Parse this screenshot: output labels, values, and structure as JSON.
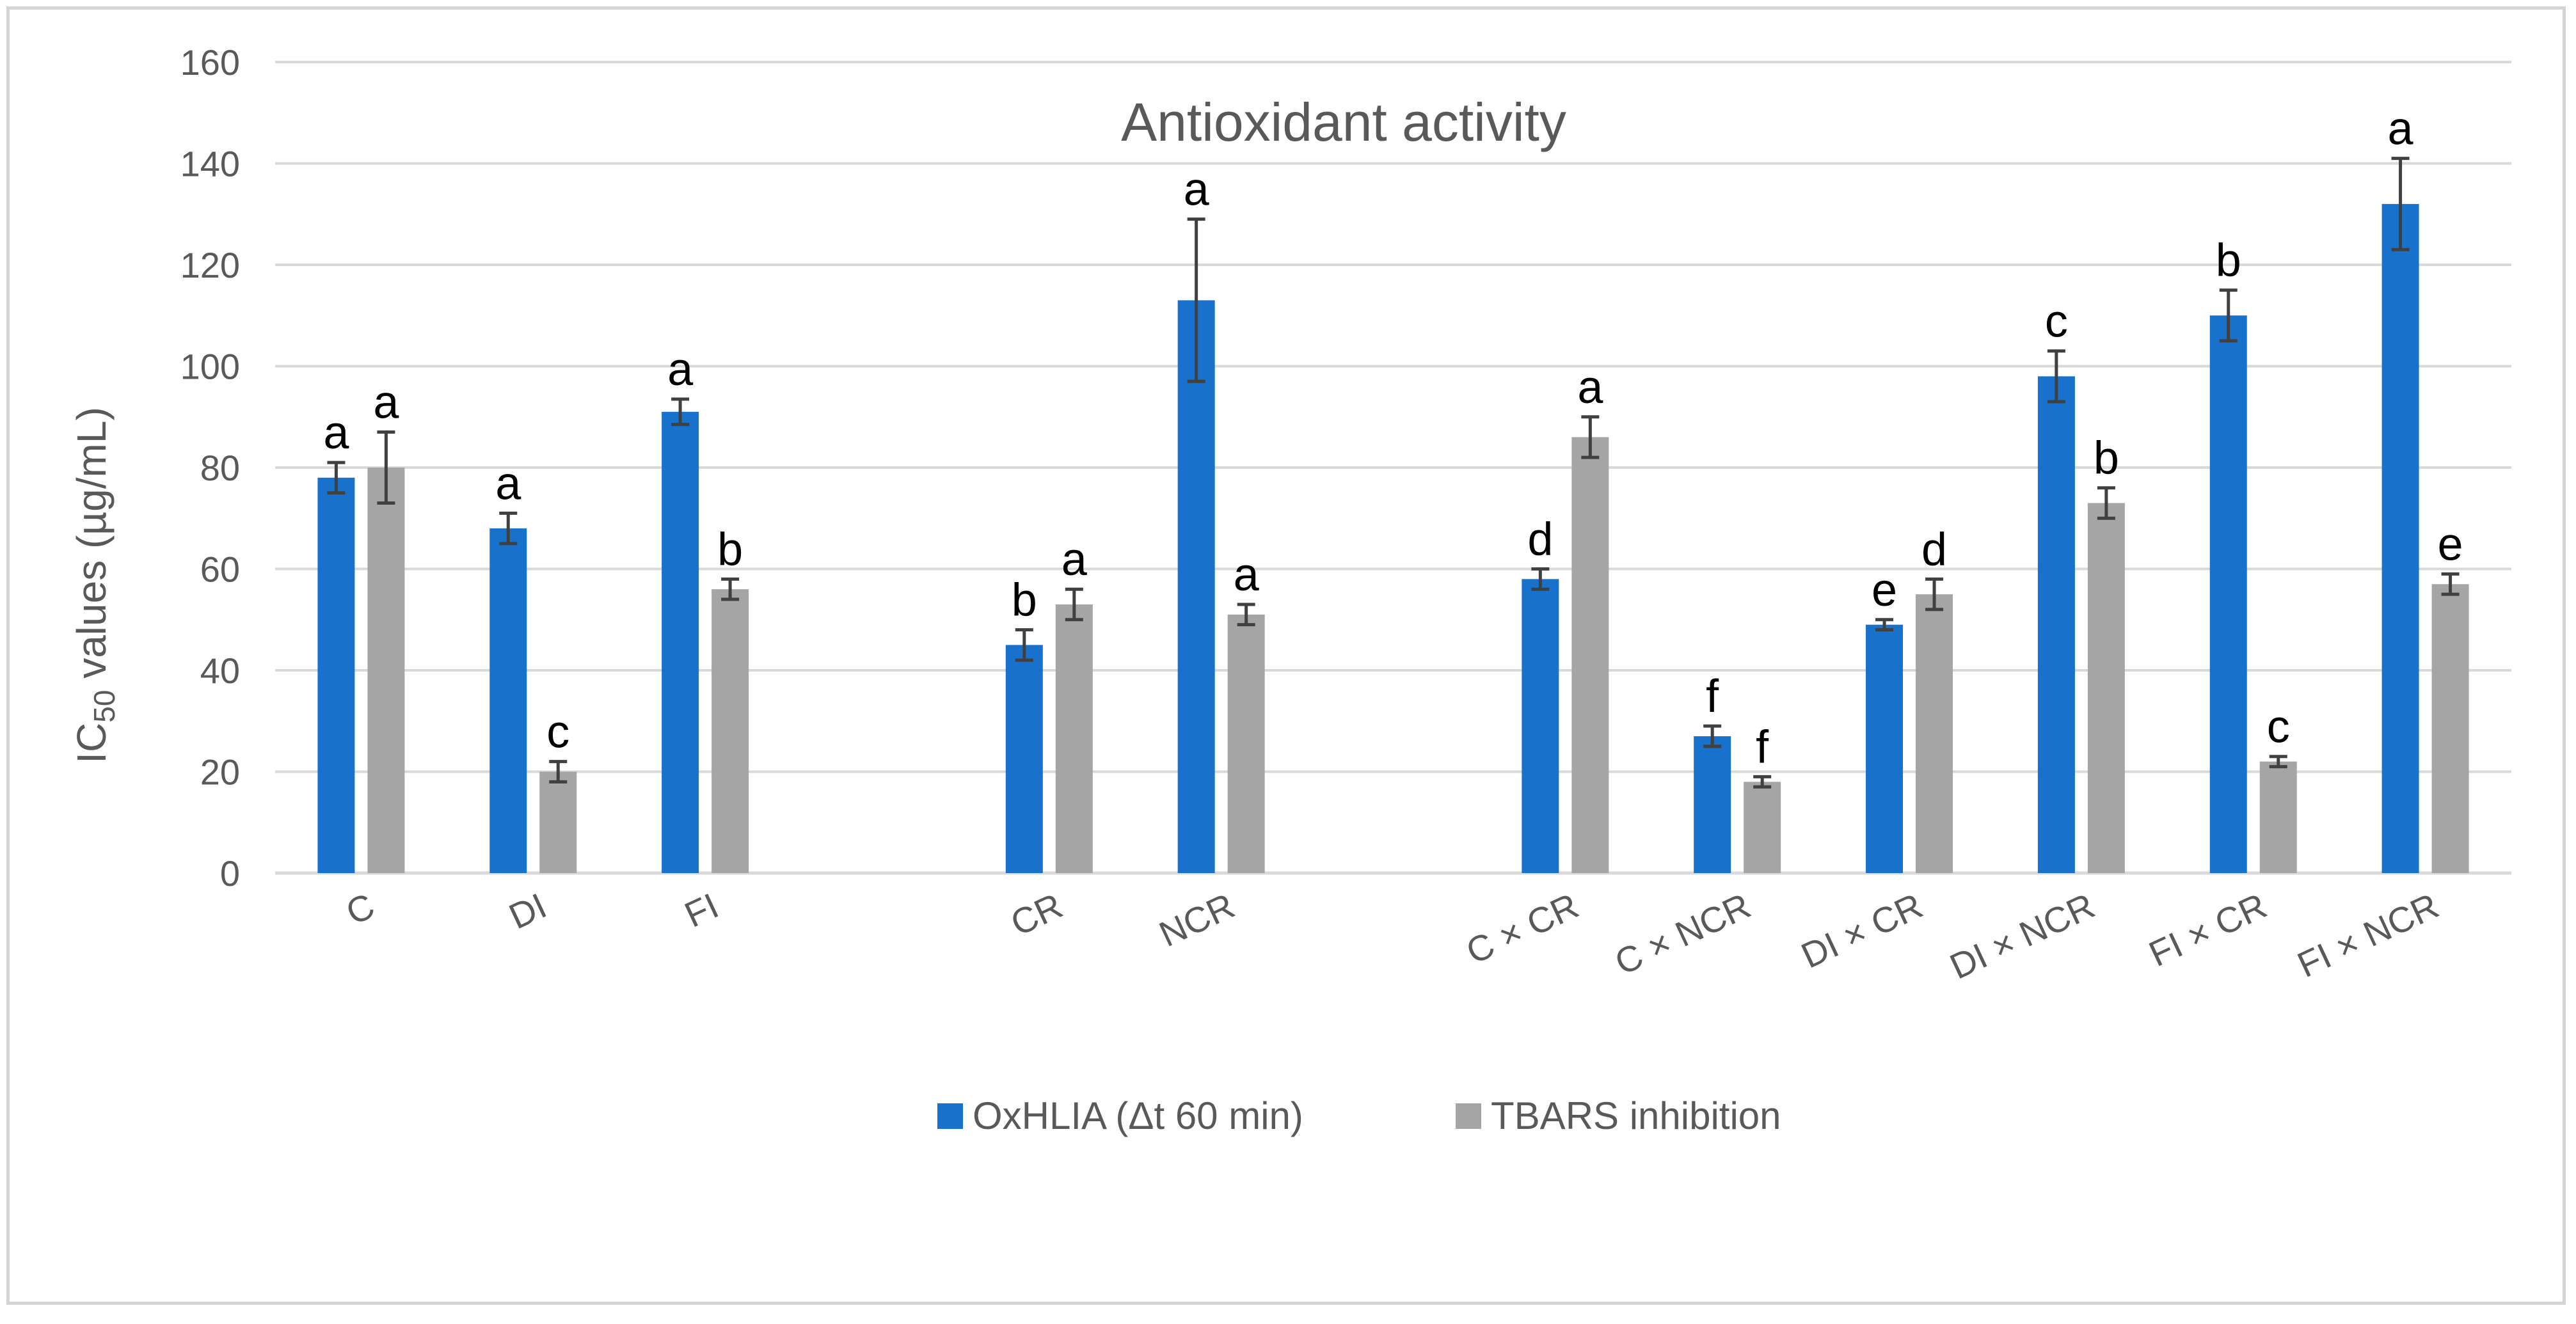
{
  "chart_data": {
    "type": "bar",
    "title": "Antioxidant activity",
    "ylabel": "IC50 values (µg/mL)",
    "ylabel_main": "IC",
    "ylabel_sub": "50",
    "ylabel_rest": " values (µg/mL)",
    "xlabel": "",
    "ylim": [
      0,
      160
    ],
    "yticks": [
      0,
      20,
      40,
      60,
      80,
      100,
      120,
      140,
      160
    ],
    "grid": true,
    "legend_position": "bottom",
    "categories": [
      "C",
      "DI",
      "FI",
      "",
      "CR",
      "NCR",
      "",
      "C × CR",
      "C × NCR",
      "DI × CR",
      "DI × NCR",
      "FI × CR",
      "FI × NCR"
    ],
    "series": [
      {
        "name": "OxHLIA (Δt  60 min)",
        "color": "#1872cc",
        "values": [
          78,
          68,
          91,
          null,
          45,
          113,
          null,
          58,
          27,
          49,
          98,
          110,
          132
        ],
        "errors": [
          3,
          3,
          2.5,
          null,
          3,
          16,
          null,
          2,
          2,
          1,
          5,
          5,
          9
        ],
        "letters": [
          "a",
          "a",
          "a",
          "",
          "b",
          "a",
          "",
          "d",
          "f",
          "e",
          "c",
          "b",
          "a"
        ]
      },
      {
        "name": "TBARS inhibition",
        "color": "#a5a5a5",
        "values": [
          80,
          20,
          56,
          null,
          53,
          51,
          null,
          86,
          18,
          55,
          73,
          22,
          57
        ],
        "errors": [
          7,
          2,
          2,
          null,
          3,
          2,
          null,
          4,
          1,
          3,
          3,
          1,
          2
        ],
        "letters": [
          "a",
          "c",
          "b",
          "",
          "a",
          "a",
          "",
          "a",
          "f",
          "d",
          "b",
          "c",
          "e"
        ]
      }
    ],
    "colors": {
      "gridline": "#d9d9d9",
      "axis": "#d9d9d9",
      "text": "#595959",
      "errorbar": "#404040"
    }
  }
}
